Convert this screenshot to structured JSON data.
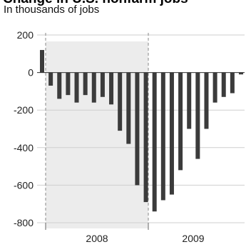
{
  "header": {
    "title": "Change in U.S. nonfarm jobs",
    "subtitle": "In thousands of jobs"
  },
  "chart_data": {
    "type": "bar",
    "title": "Change in U.S. nonfarm jobs",
    "subtitle": "In thousands of jobs",
    "xlabel": "",
    "ylabel": "",
    "ylim": [
      -800,
      200
    ],
    "y_ticks": [
      200,
      0,
      -200,
      -400,
      -600,
      -800
    ],
    "y_tick_labels": [
      "200",
      "0",
      "-200",
      "-400",
      "-600",
      "-800"
    ],
    "x_tick_labels": [
      "2008",
      "2009"
    ],
    "grid": true,
    "shaded_region": "2008 recession period (shaded)",
    "bar_color": "#3b3b3b",
    "values": [
      120,
      -70,
      -140,
      -120,
      -160,
      -120,
      -160,
      -130,
      -170,
      -310,
      -380,
      -600,
      -690,
      -740,
      -680,
      -650,
      -520,
      -300,
      -460,
      -300,
      -160,
      -130,
      -110,
      -10
    ]
  }
}
